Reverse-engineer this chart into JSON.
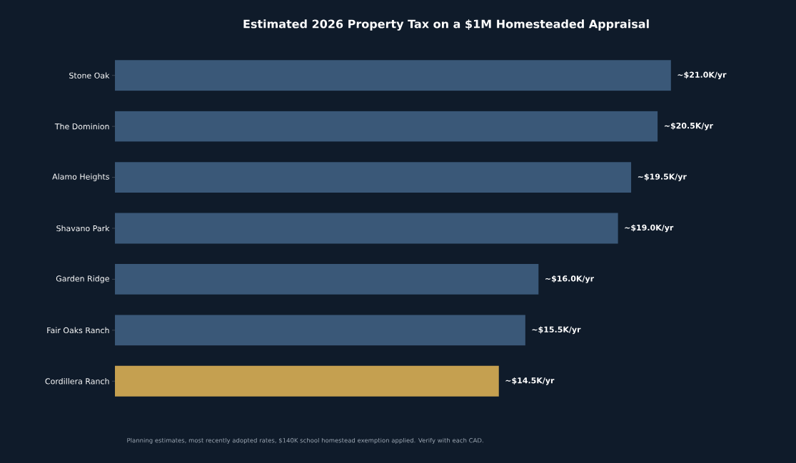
{
  "chart_data": {
    "type": "bar",
    "orientation": "horizontal",
    "title": "Estimated 2026 Property Tax on a $1M Homesteaded Appraisal",
    "categories": [
      "Stone Oak",
      "The Dominion",
      "Alamo Heights",
      "Shavano Park",
      "Garden Ridge",
      "Fair Oaks Ranch",
      "Cordillera Ranch"
    ],
    "values": [
      21.0,
      20.5,
      19.5,
      19.0,
      16.0,
      15.5,
      14.5
    ],
    "colors": [
      "#3a5878",
      "#3a5878",
      "#3a5878",
      "#3a5878",
      "#3a5878",
      "#3a5878",
      "#c5a050"
    ],
    "value_labels": [
      "~$21.0K/yr",
      "~$20.5K/yr",
      "~$19.5K/yr",
      "~$19.0K/yr",
      "~$16.0K/yr",
      "~$15.5K/yr",
      "~$14.5K/yr"
    ],
    "annotations": [
      "Planning estimates, most recently adopted rates, $140K school homestead exemption applied. Verify with each CAD."
    ]
  }
}
